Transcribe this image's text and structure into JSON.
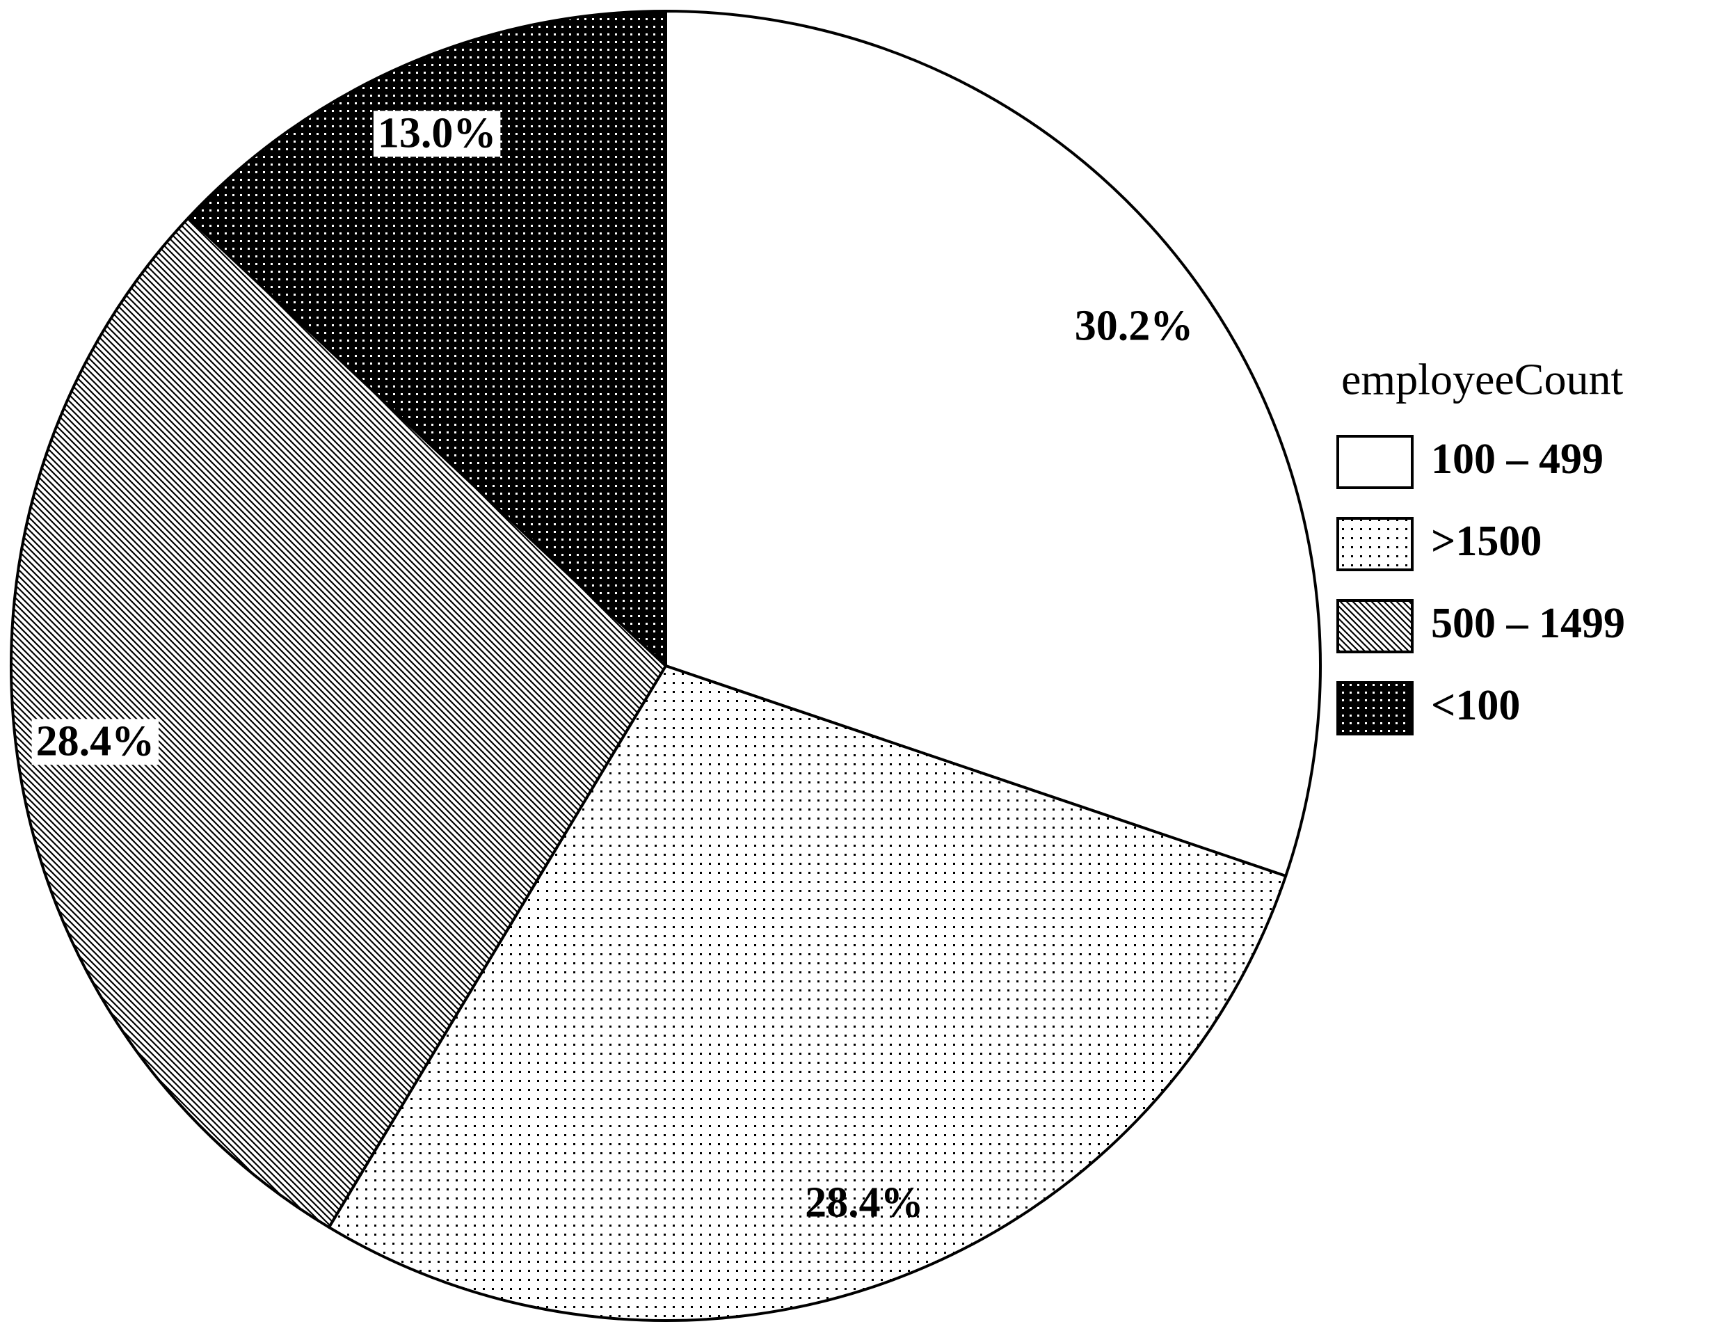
{
  "chart_data": {
    "type": "pie",
    "legend_title": "employeeCount",
    "legend": "right",
    "categories": [
      "100 – 499",
      ">1500",
      "500 – 1499",
      "<100"
    ],
    "values": [
      30.2,
      28.4,
      28.4,
      13.0
    ],
    "value_labels": [
      "30.2%",
      "28.4%",
      "28.4%",
      "13.0%"
    ],
    "patterns": [
      "none",
      "dots",
      "hatch",
      "dark-dots"
    ],
    "label_boxes": [
      false,
      false,
      true,
      true
    ]
  }
}
